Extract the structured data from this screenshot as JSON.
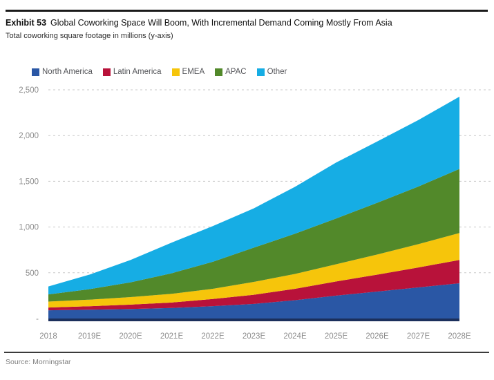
{
  "header": {
    "exhibit_label": "Exhibit 53",
    "title": "Global Coworking Space Will Boom, With Incremental Demand Coming Mostly From Asia",
    "subtitle": "Total coworking square footage in millions (y-axis)"
  },
  "footer": {
    "source": "Source: Morningstar"
  },
  "colors": {
    "north_america": "#2A57A5",
    "latin_america": "#B8123A",
    "emea": "#F6C50B",
    "apac": "#52892A",
    "other": "#16ADE4",
    "axis_bar": "#1B2F5C",
    "gridline": "#c8c8c8",
    "tick_text": "#8c8c8c"
  },
  "chart_data": {
    "type": "area",
    "stacked": true,
    "title": "Global Coworking Space Will Boom, With Incremental Demand Coming Mostly From Asia",
    "subtitle": "Total coworking square footage in millions (y-axis)",
    "x": [
      "2018",
      "2019E",
      "2020E",
      "2021E",
      "2022E",
      "2023E",
      "2024E",
      "2025E",
      "2026E",
      "2027E",
      "2028E"
    ],
    "series": [
      {
        "name": "North America",
        "color": "#2A57A5",
        "values": [
          90,
          96,
          104,
          115,
          135,
          160,
          200,
          250,
          295,
          340,
          385
        ]
      },
      {
        "name": "Latin America",
        "color": "#B8123A",
        "values": [
          30,
          38,
          48,
          60,
          78,
          100,
          125,
          155,
          185,
          218,
          255
        ]
      },
      {
        "name": "EMEA",
        "color": "#F6C50B",
        "values": [
          65,
          72,
          82,
          95,
          112,
          140,
          162,
          188,
          220,
          255,
          295
        ]
      },
      {
        "name": "APAC",
        "color": "#52892A",
        "values": [
          78,
          115,
          162,
          225,
          295,
          375,
          440,
          500,
          565,
          630,
          700
        ]
      },
      {
        "name": "Other",
        "color": "#16ADE4",
        "values": [
          87,
          159,
          244,
          335,
          390,
          430,
          513,
          612,
          670,
          727,
          790
        ]
      }
    ],
    "totals": [
      350,
      480,
      640,
      830,
      1010,
      1205,
      1440,
      1705,
      1935,
      2170,
      2425
    ],
    "ylim": [
      0,
      2500
    ],
    "yticks": [
      0,
      500,
      1000,
      1500,
      2000,
      2500
    ],
    "ytick_labels": [
      "-",
      "500",
      "1,000",
      "1,500",
      "2,000",
      "2,500"
    ],
    "grid": "horizontal-dashed",
    "legend_position": "top-left"
  }
}
